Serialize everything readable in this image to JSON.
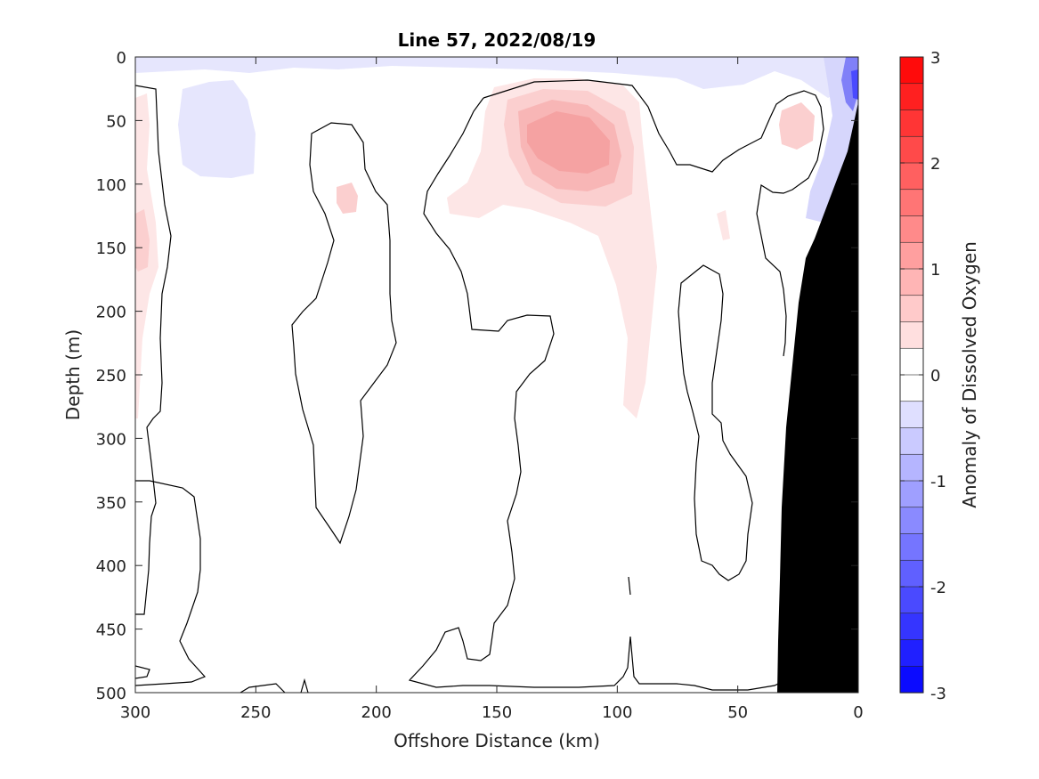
{
  "chart_data": {
    "type": "heatmap",
    "title": "Line 57, 2022/08/19",
    "xlabel": "Offshore Distance (km)",
    "ylabel": "Depth (m)",
    "xlim": [
      300,
      0
    ],
    "ylim": [
      500,
      0
    ],
    "x_reversed": true,
    "y_reversed": true,
    "xticks": [
      "300",
      "250",
      "200",
      "150",
      "100",
      "50",
      "0"
    ],
    "yticks": [
      "0",
      "50",
      "100",
      "150",
      "200",
      "250",
      "300",
      "350",
      "400",
      "450",
      "500"
    ],
    "colorbar": {
      "label": "Anomaly of Dissolved Oxygen",
      "range": [
        -3,
        3
      ],
      "levels": 24,
      "ticks": [
        "3",
        "2",
        "1",
        "0",
        "-1",
        "-2",
        "-3"
      ],
      "low_color": "#0000ff",
      "mid_color": "#ffffff",
      "high_color": "#ff0000"
    },
    "bathymetry_color": "#000000",
    "contour_level": 0,
    "features": [
      {
        "sign": "positive",
        "peak_anomaly": 1.0,
        "center_x_km": 122,
        "center_depth_m": 75
      },
      {
        "sign": "positive",
        "peak_anomaly": 0.5,
        "center_x_km": 25,
        "center_depth_m": 55
      },
      {
        "sign": "positive",
        "peak_anomaly": 0.4,
        "center_x_km": 215,
        "center_depth_m": 110
      },
      {
        "sign": "positive",
        "peak_anomaly": 0.4,
        "center_x_km": 297,
        "center_depth_m": 160
      },
      {
        "sign": "negative",
        "peak_anomaly": -1.5,
        "center_x_km": 2,
        "center_depth_m": 30
      },
      {
        "sign": "negative",
        "peak_anomaly": -0.3,
        "center_x_km": 268,
        "center_depth_m": 95
      }
    ]
  }
}
